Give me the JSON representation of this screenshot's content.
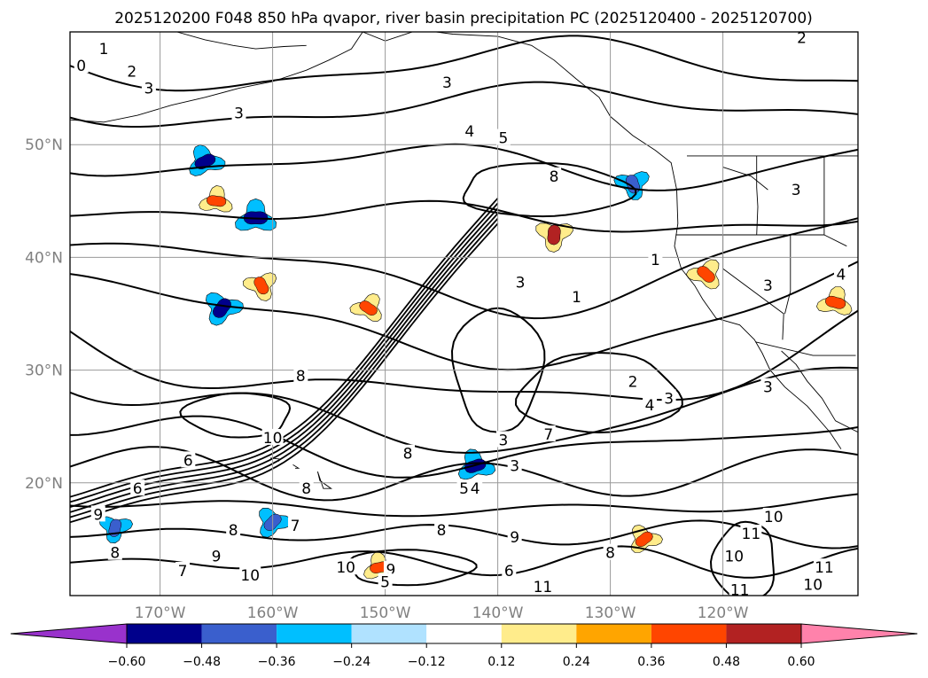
{
  "chart_data": {
    "type": "contour map",
    "title": "2025120200 F048 850 hPa qvapor, river basin precipitation PC (2025120400 - 2025120700)",
    "xlabel": "",
    "ylabel": "",
    "x_ticks": [
      "170°W",
      "160°W",
      "150°W",
      "140°W",
      "130°W",
      "120°W"
    ],
    "y_ticks": [
      "20°N",
      "30°N",
      "40°N",
      "50°N"
    ],
    "lon_range": [
      -178,
      -108
    ],
    "lat_range": [
      10,
      60
    ],
    "grid": true,
    "contour_labels": [
      {
        "text": "0",
        "lon": -177,
        "lat": 57
      },
      {
        "text": "1",
        "lon": -175,
        "lat": 58.5
      },
      {
        "text": "2",
        "lon": -172.5,
        "lat": 56.5
      },
      {
        "text": "3",
        "lon": -171,
        "lat": 55
      },
      {
        "text": "3",
        "lon": -163,
        "lat": 52.8
      },
      {
        "text": "3",
        "lon": -144.5,
        "lat": 55.5
      },
      {
        "text": "4",
        "lon": -142.5,
        "lat": 51.2
      },
      {
        "text": "5",
        "lon": -139.5,
        "lat": 50.6
      },
      {
        "text": "8",
        "lon": -135,
        "lat": 47.2
      },
      {
        "text": "1",
        "lon": -126,
        "lat": 39.8
      },
      {
        "text": "3",
        "lon": -138,
        "lat": 37.8
      },
      {
        "text": "1",
        "lon": -133,
        "lat": 36.5
      },
      {
        "text": "2",
        "lon": -128,
        "lat": 29
      },
      {
        "text": "4",
        "lon": -126.5,
        "lat": 26.9
      },
      {
        "text": "3",
        "lon": -124.8,
        "lat": 27.5
      },
      {
        "text": "7",
        "lon": -135.5,
        "lat": 24.3
      },
      {
        "text": "3",
        "lon": -139.5,
        "lat": 23.8
      },
      {
        "text": "3",
        "lon": -138.5,
        "lat": 21.5
      },
      {
        "text": "8",
        "lon": -148,
        "lat": 22.6
      },
      {
        "text": "4",
        "lon": -142,
        "lat": 19.5
      },
      {
        "text": "5",
        "lon": -143,
        "lat": 19.5
      },
      {
        "text": "8",
        "lon": -145,
        "lat": 15.8
      },
      {
        "text": "9",
        "lon": -138.5,
        "lat": 15.2
      },
      {
        "text": "8",
        "lon": -130,
        "lat": 13.8
      },
      {
        "text": "9",
        "lon": -149.5,
        "lat": 12.3
      },
      {
        "text": "10",
        "lon": -153.5,
        "lat": 12.5
      },
      {
        "text": "11",
        "lon": -136,
        "lat": 10.8
      },
      {
        "text": "6",
        "lon": -139,
        "lat": 12.2
      },
      {
        "text": "5",
        "lon": -150,
        "lat": 11.2
      },
      {
        "text": "7",
        "lon": -158,
        "lat": 16.2
      },
      {
        "text": "8",
        "lon": -163.5,
        "lat": 15.8
      },
      {
        "text": "8",
        "lon": -157,
        "lat": 19.5
      },
      {
        "text": "10",
        "lon": -160,
        "lat": 24
      },
      {
        "text": "6",
        "lon": -167.5,
        "lat": 22
      },
      {
        "text": "6",
        "lon": -172,
        "lat": 19.5
      },
      {
        "text": "9",
        "lon": -175.5,
        "lat": 17.2
      },
      {
        "text": "8",
        "lon": -174,
        "lat": 13.8
      },
      {
        "text": "7",
        "lon": -168,
        "lat": 12.2
      },
      {
        "text": "9",
        "lon": -165,
        "lat": 13.5
      },
      {
        "text": "10",
        "lon": -162,
        "lat": 11.8
      },
      {
        "text": "11",
        "lon": -117.5,
        "lat": 15.5
      },
      {
        "text": "10",
        "lon": -115.5,
        "lat": 17
      },
      {
        "text": "10",
        "lon": -119,
        "lat": 13.5
      },
      {
        "text": "11",
        "lon": -118.5,
        "lat": 10.5
      },
      {
        "text": "11",
        "lon": -111,
        "lat": 12.5
      },
      {
        "text": "10",
        "lon": -112,
        "lat": 11
      },
      {
        "text": "8",
        "lon": -157.5,
        "lat": 29.5
      },
      {
        "text": "3",
        "lon": -113.5,
        "lat": 46
      },
      {
        "text": "3",
        "lon": -116,
        "lat": 37.5
      },
      {
        "text": "4",
        "lon": -109.5,
        "lat": 38.5
      },
      {
        "text": "3",
        "lon": -116,
        "lat": 28.5
      },
      {
        "text": "2",
        "lon": -113,
        "lat": 59.5
      }
    ],
    "colorbar": {
      "levels": [
        -0.72,
        -0.6,
        -0.48,
        -0.36,
        -0.24,
        -0.12,
        0.12,
        0.24,
        0.36,
        0.48,
        0.6,
        0.72
      ],
      "tick_labels": [
        "−0.60",
        "−0.48",
        "−0.36",
        "−0.24",
        "−0.12",
        "0.12",
        "0.24",
        "0.36",
        "0.48",
        "0.60"
      ],
      "colors": [
        "#3b0f9a",
        "#00008b",
        "#3a5fcd",
        "#00bfff",
        "#b0e2ff",
        "#ffffff",
        "#ffec8b",
        "#ffa500",
        "#ff4500",
        "#b22222",
        "#ff82ab"
      ],
      "under_color": "#9932cc",
      "over_color": "#ff82ab",
      "extend": "both"
    },
    "precip_pc_regions": [
      {
        "lon": -161.5,
        "lat": 43.5,
        "value": -0.6
      },
      {
        "lon": -166,
        "lat": 48.5,
        "value": -0.5
      },
      {
        "lon": -164.5,
        "lat": 35.5,
        "value": -0.55
      },
      {
        "lon": -135,
        "lat": 42,
        "value": 0.5
      },
      {
        "lon": -161,
        "lat": 37.5,
        "value": 0.42
      },
      {
        "lon": -151.5,
        "lat": 35.5,
        "value": 0.4
      },
      {
        "lon": -165,
        "lat": 45,
        "value": 0.4
      },
      {
        "lon": -142,
        "lat": 21.5,
        "value": -0.5
      },
      {
        "lon": -160,
        "lat": 16.5,
        "value": -0.45
      },
      {
        "lon": -174,
        "lat": 16,
        "value": -0.4
      },
      {
        "lon": -128,
        "lat": 46.5,
        "value": -0.45
      },
      {
        "lon": -121.5,
        "lat": 38.5,
        "value": 0.45
      },
      {
        "lon": -110,
        "lat": 36,
        "value": 0.45
      },
      {
        "lon": -150.5,
        "lat": 12.5,
        "value": 0.4
      },
      {
        "lon": -127,
        "lat": 15,
        "value": 0.4
      }
    ]
  }
}
